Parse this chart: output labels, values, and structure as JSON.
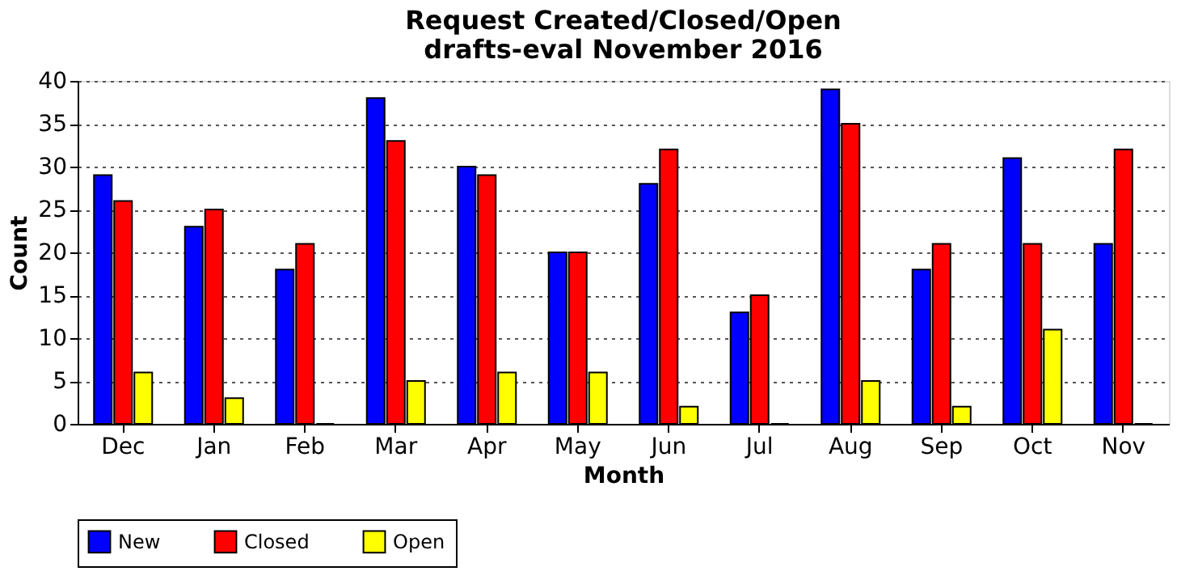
{
  "chart_data": {
    "type": "bar",
    "title": "Request Created/Closed/Open\ndrafts-eval November 2016",
    "xlabel": "Month",
    "ylabel": "Count",
    "categories": [
      "Dec",
      "Jan",
      "Feb",
      "Mar",
      "Apr",
      "May",
      "Jun",
      "Jul",
      "Aug",
      "Sep",
      "Oct",
      "Nov"
    ],
    "series": [
      {
        "name": "New",
        "color": "#0000ff",
        "values": [
          29,
          23,
          18,
          38,
          30,
          20,
          28,
          13,
          39,
          18,
          31,
          21
        ]
      },
      {
        "name": "Closed",
        "color": "#ff0000",
        "values": [
          26,
          25,
          21,
          33,
          29,
          20,
          32,
          15,
          35,
          21,
          21,
          32
        ]
      },
      {
        "name": "Open",
        "color": "#ffff00",
        "values": [
          6,
          3,
          0,
          5,
          6,
          6,
          2,
          0,
          5,
          2,
          11,
          0
        ]
      }
    ],
    "ylim": [
      0,
      40
    ],
    "yticks": [
      0,
      5,
      10,
      15,
      20,
      25,
      30,
      35,
      40
    ],
    "grid": "y",
    "legend": "bottom"
  }
}
